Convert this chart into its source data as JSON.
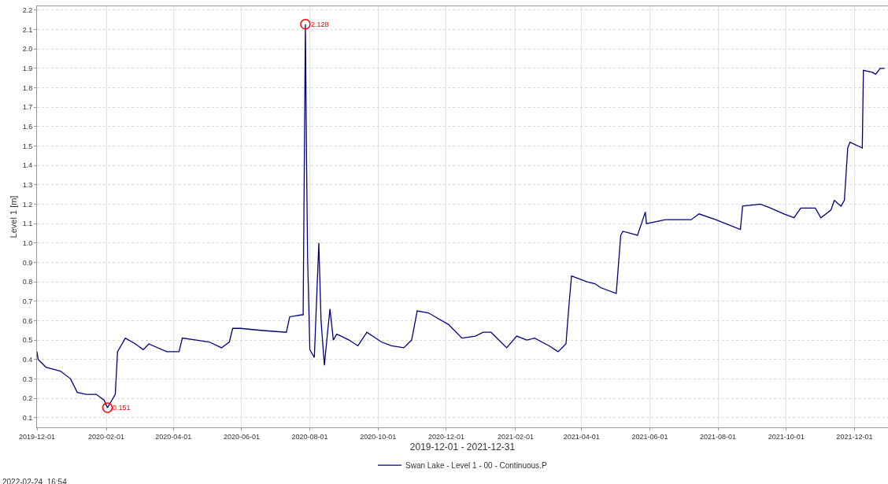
{
  "chart_data": {
    "type": "line",
    "xlabel": "2019-12-01 - 2021-12-31",
    "ylabel": "Level 1 [m]",
    "xlim": [
      "2019-12-01",
      "2021-12-31"
    ],
    "xticks": [
      "2019-12-01",
      "2020-02-01",
      "2020-04-01",
      "2020-06-01",
      "2020-08-01",
      "2020-10-01",
      "2020-12-01",
      "2021-02-01",
      "2021-04-01",
      "2021-06-01",
      "2021-08-01",
      "2021-10-01",
      "2021-12-01"
    ],
    "ylim": [
      0.05,
      2.22
    ],
    "yticks": [
      0.1,
      0.2,
      0.3,
      0.4,
      0.5,
      0.6,
      0.7,
      0.8,
      0.9,
      {
        "value": 1,
        "label": "1.0"
      },
      1.1,
      1.2,
      1.3,
      1.4,
      1.5,
      1.6,
      1.7,
      1.8,
      1.9,
      {
        "value": 2,
        "label": "2.0"
      },
      2.1,
      2.2
    ],
    "grid": true,
    "legend": "bottom",
    "marker": "none",
    "line_style": "solid",
    "series": [
      {
        "name": "Swan Lake - Level 1 - 00 - Continuous.P",
        "color": "#000080",
        "x": [
          "2019-12-01",
          "2019-12-02",
          "2019-12-09",
          "2019-12-22",
          "2019-12-31",
          "2020-01-06",
          "2020-01-14",
          "2020-01-23",
          "2020-01-30",
          "2020-02-02",
          "2020-02-09",
          "2020-02-11",
          "2020-02-18",
          "2020-02-27",
          "2020-03-05",
          "2020-03-10",
          "2020-03-26",
          "2020-04-06",
          "2020-04-09",
          "2020-05-03",
          "2020-05-14",
          "2020-05-21",
          "2020-05-24",
          "2020-05-31",
          "2020-06-18",
          "2020-07-11",
          "2020-07-14",
          "2020-07-25",
          "2020-07-26",
          "2020-07-28",
          "2020-07-29",
          "2020-07-30",
          "2020-08-01",
          "2020-08-05",
          "2020-08-08",
          "2020-08-09",
          "2020-08-11",
          "2020-08-14",
          "2020-08-17",
          "2020-08-19",
          "2020-08-22",
          "2020-08-25",
          "2020-08-29",
          "2020-09-05",
          "2020-09-13",
          "2020-09-21",
          "2020-10-04",
          "2020-10-13",
          "2020-10-24",
          "2020-10-31",
          "2020-11-05",
          "2020-11-15",
          "2020-11-24",
          "2020-12-03",
          "2020-12-15",
          "2020-12-27",
          "2021-01-03",
          "2021-01-10",
          "2021-01-24",
          "2021-02-02",
          "2021-02-11",
          "2021-02-18",
          "2021-03-03",
          "2021-03-11",
          "2021-03-18",
          "2021-03-21",
          "2021-03-23",
          "2021-04-06",
          "2021-04-13",
          "2021-04-18",
          "2021-05-02",
          "2021-05-06",
          "2021-05-08",
          "2021-05-21",
          "2021-05-28",
          "2021-05-29",
          "2021-06-15",
          "2021-07-08",
          "2021-07-15",
          "2021-07-30",
          "2021-08-21",
          "2021-08-23",
          "2021-09-08",
          "2021-09-17",
          "2021-09-29",
          "2021-10-08",
          "2021-10-14",
          "2021-10-27",
          "2021-11-01",
          "2021-11-10",
          "2021-11-13",
          "2021-11-19",
          "2021-11-22",
          "2021-11-25",
          "2021-11-27",
          "2021-12-08",
          "2021-12-09",
          "2021-12-17",
          "2021-12-20",
          "2021-12-24",
          "2021-12-28"
        ],
        "values": [
          0.44,
          0.4,
          0.36,
          0.34,
          0.3,
          0.23,
          0.22,
          0.22,
          0.19,
          0.151,
          0.22,
          0.44,
          0.51,
          0.48,
          0.45,
          0.48,
          0.44,
          0.44,
          0.51,
          0.49,
          0.46,
          0.49,
          0.56,
          0.56,
          0.55,
          0.54,
          0.62,
          0.63,
          0.63,
          2.128,
          1.45,
          0.92,
          0.45,
          0.41,
          0.85,
          1.0,
          0.6,
          0.37,
          0.55,
          0.66,
          0.5,
          0.53,
          0.52,
          0.5,
          0.47,
          0.54,
          0.49,
          0.47,
          0.46,
          0.5,
          0.65,
          0.64,
          0.61,
          0.58,
          0.51,
          0.52,
          0.54,
          0.54,
          0.46,
          0.52,
          0.5,
          0.51,
          0.47,
          0.44,
          0.48,
          0.7,
          0.83,
          0.8,
          0.79,
          0.77,
          0.74,
          1.04,
          1.06,
          1.04,
          1.16,
          1.1,
          1.12,
          1.12,
          1.15,
          1.12,
          1.07,
          1.19,
          1.2,
          1.18,
          1.15,
          1.13,
          1.18,
          1.18,
          1.13,
          1.17,
          1.22,
          1.19,
          1.22,
          1.49,
          1.52,
          1.49,
          1.89,
          1.88,
          1.87,
          1.9,
          1.9
        ]
      }
    ],
    "annotations": [
      {
        "text": "2.128",
        "x": "2020-07-28",
        "y": 2.128
      },
      {
        "text": "0.151",
        "x": "2020-02-02",
        "y": 0.151
      },
      "2022-02-24  16:54"
    ]
  }
}
